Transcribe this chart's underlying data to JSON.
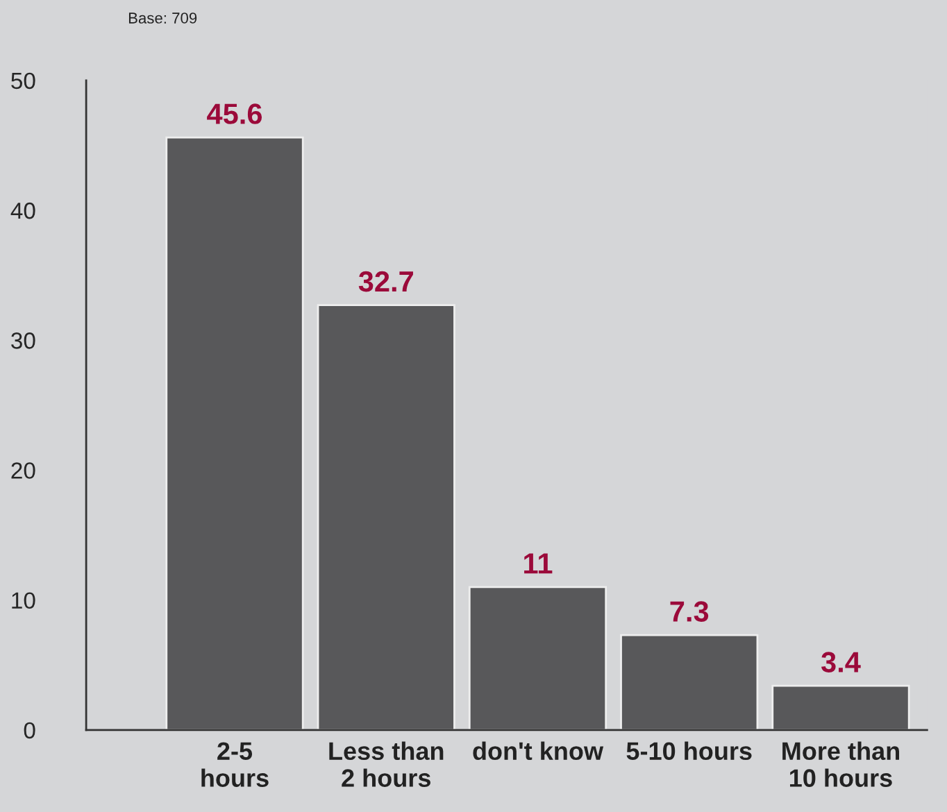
{
  "chart_data": {
    "type": "bar",
    "categories": [
      "2-5\nhours",
      "Less than\n2 hours",
      "don't know",
      "5-10 hours",
      "More than\n10 hours"
    ],
    "values": [
      45.6,
      32.7,
      11,
      7.3,
      3.4
    ],
    "color": "#58585a",
    "ylim": [
      0,
      50
    ],
    "yticks": [
      0,
      10,
      20,
      30,
      40,
      50
    ],
    "grid": false,
    "data_labels": true,
    "annotations": [
      "Base: 709"
    ]
  }
}
